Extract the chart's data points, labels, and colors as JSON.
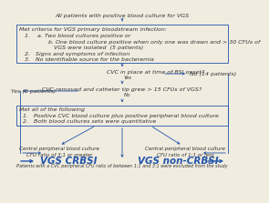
{
  "title": "All patients with positive blood culture for VGS",
  "box1_lines": [
    "Met criteria for VGS primary bloodstream infection:",
    "1.    a. Two blood cultures positive or",
    "          b. One blood culture positive when only one was drawn and > 30 CFUs of",
    "             VGS were isolated  (5 patients)",
    "2.   Signs and symptoms of infection",
    "3.   No identifiable source for the bacteremia"
  ],
  "q1": "CVC in place at time of BSI onset?",
  "q1_no": "No (14 patients)",
  "q1_yes": "Yes",
  "q2": "CVC removed and catheter tip grew > 15 CFUs of VGS?",
  "q2_yes": "Yes (6 patients)",
  "q2_no": "No",
  "box2_lines": [
    "Met all of the following",
    "1.   Positive CVC blood culture plus positive peripheral blood culture",
    "2.   Both blood cultures sets were quantitative"
  ],
  "left_label_line1": "Central peripheral blood culture",
  "left_label_line2": "CFU ratio of 3:1 or greater",
  "right_label_line1": "Central peripheral blood culture",
  "right_label_line2": "CFU ratio of 1:1 or less",
  "outcome_left": "VGS CRBSI",
  "outcome_right": "VGS non-CRBSI",
  "footnote": "Patients with a CVC peripheral CFU ratio of between 1:1 and 3:1 were excluded from the study",
  "arrow_color": "#2255aa",
  "box_edgecolor": "#2255aa",
  "text_color": "#333333",
  "outcome_color": "#2255aa",
  "bg_color": "#f0ece0"
}
